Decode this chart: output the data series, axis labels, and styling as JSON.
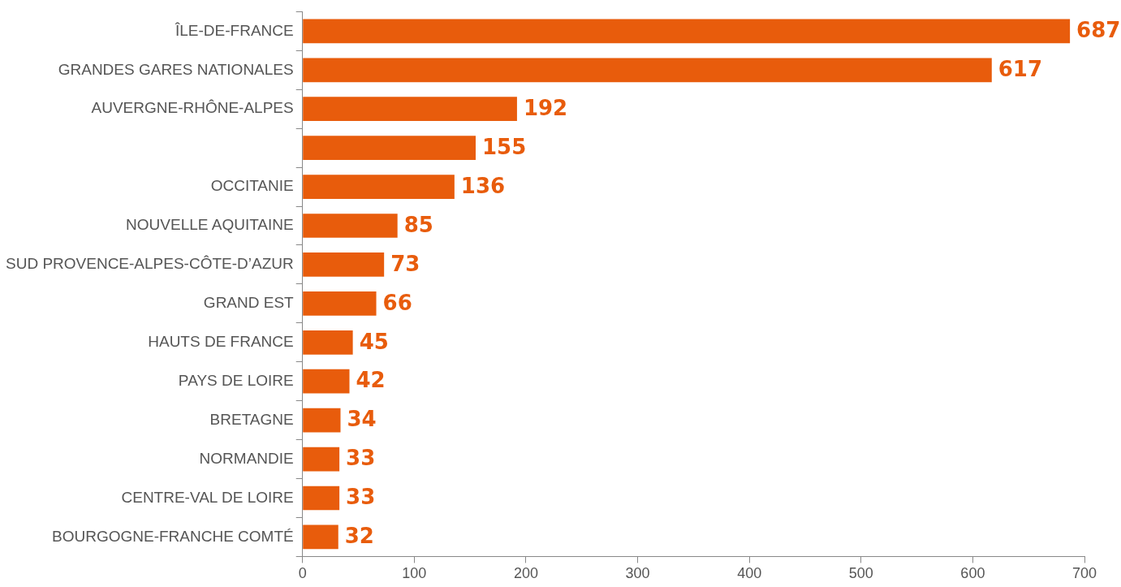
{
  "chart_data": {
    "type": "bar",
    "orientation": "horizontal",
    "categories": [
      "ÎLE-DE-FRANCE",
      "GRANDES GARES NATIONALES",
      "AUVERGNE-RHÔNE-ALPES",
      null,
      "OCCITANIE",
      "NOUVELLE AQUITAINE",
      "SUD PROVENCE-ALPES-CÔTE-D’AZUR",
      "GRAND EST",
      "HAUTS DE FRANCE",
      "PAYS DE LOIRE",
      "BRETAGNE",
      "NORMANDIE",
      "CENTRE-VAL DE LOIRE",
      "BOURGOGNE-FRANCHE COMTÉ"
    ],
    "values": [
      687,
      617,
      192,
      155,
      136,
      85,
      73,
      66,
      45,
      42,
      34,
      33,
      33,
      32
    ],
    "color": "#e85c0c",
    "xlim": [
      0,
      700
    ],
    "xticks": [
      0,
      100,
      200,
      300,
      400,
      500,
      600,
      700
    ],
    "grid": false,
    "legend": false,
    "data_labels": true
  }
}
